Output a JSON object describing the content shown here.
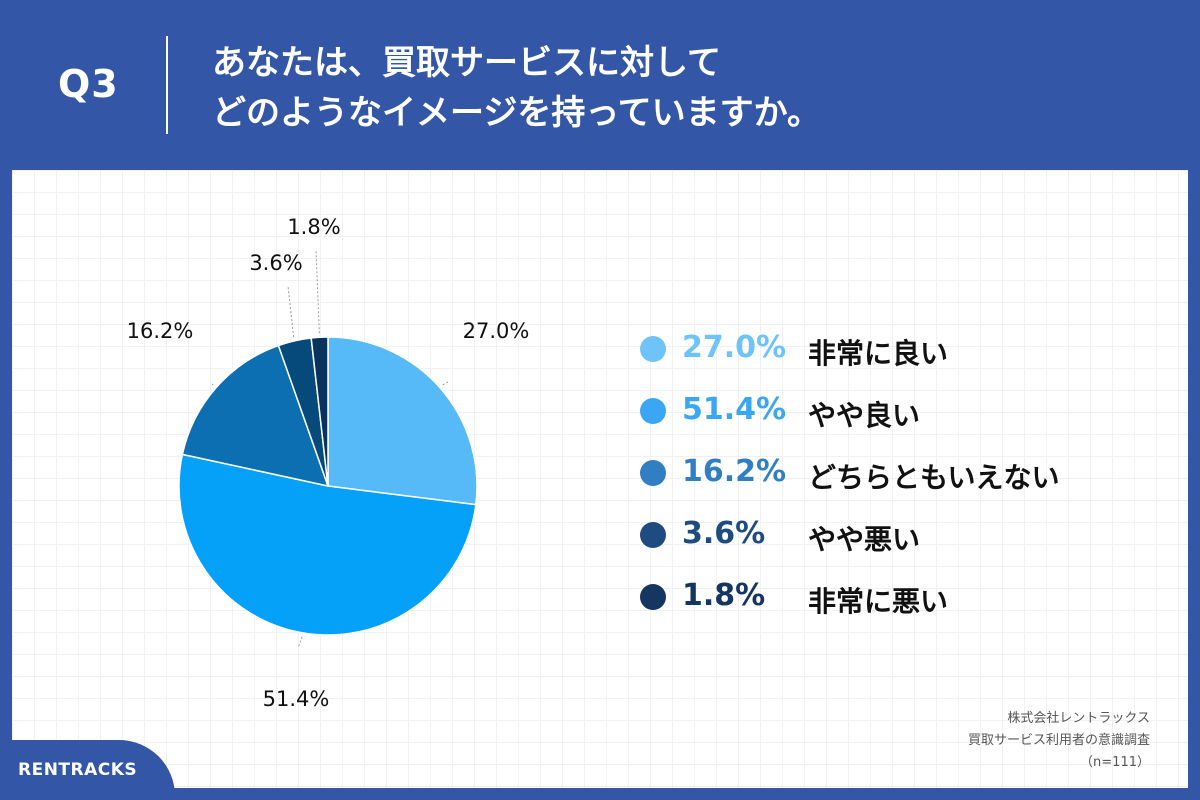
{
  "header": {
    "question_no": "Q3",
    "title_line1": "あなたは、買取サービスに対して",
    "title_line2": "どのようなイメージを持っていますか。"
  },
  "chart_data": {
    "type": "pie",
    "slices": [
      {
        "label": "非常に良い",
        "value": 27.0,
        "display": "27.0%",
        "color": "#56b9f8"
      },
      {
        "label": "やや良い",
        "value": 51.4,
        "display": "51.4%",
        "color": "#05a0f8"
      },
      {
        "label": "どちらともいえない",
        "value": 16.2,
        "display": "16.2%",
        "color": "#0b6fb1"
      },
      {
        "label": "やや悪い",
        "value": 3.6,
        "display": "3.6%",
        "color": "#064a7c"
      },
      {
        "label": "非常に悪い",
        "value": 1.8,
        "display": "1.8%",
        "color": "#08335f"
      }
    ]
  },
  "legend": {
    "items": [
      {
        "value": "27.0%",
        "label": "非常に良い",
        "color": "#6ec3fa"
      },
      {
        "value": "51.4%",
        "label": "やや良い",
        "color": "#3aa6f4"
      },
      {
        "value": "16.2%",
        "label": "どちらともいえない",
        "color": "#2f7fc2"
      },
      {
        "value": "3.6%",
        "label": "やや悪い",
        "color": "#1f4c80"
      },
      {
        "value": "1.8%",
        "label": "非常に悪い",
        "color": "#143660"
      }
    ]
  },
  "source": {
    "line1": "株式会社レントラックス",
    "line2": "買取サービス利用者の意識調査",
    "line3": "（n=111）"
  },
  "brand": {
    "logo_text": "RENTRACKS"
  }
}
